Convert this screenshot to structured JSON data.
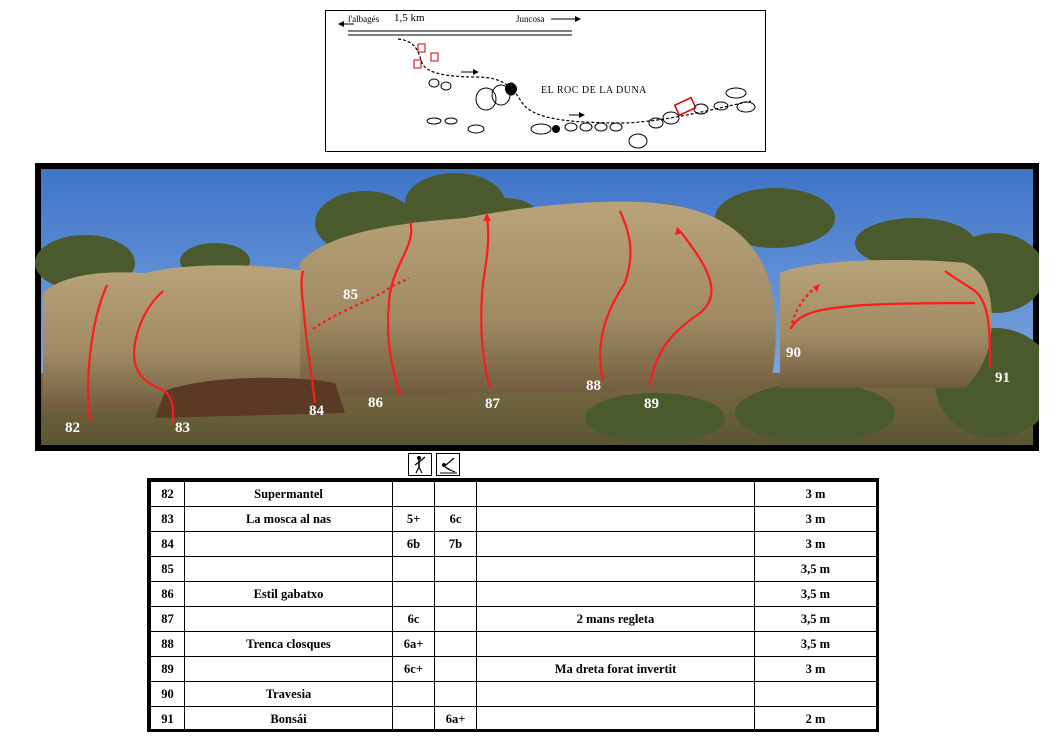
{
  "map": {
    "left_label": "l'albagés",
    "distance": "1,5 km",
    "right_label": "Juncosa",
    "title": "EL ROC DE LA DUNA",
    "parking_icon": "parking-icon"
  },
  "photo": {
    "route_labels": [
      {
        "id": "82",
        "text": "82"
      },
      {
        "id": "83",
        "text": "83"
      },
      {
        "id": "84",
        "text": "84"
      },
      {
        "id": "85",
        "text": "85"
      },
      {
        "id": "86",
        "text": "86"
      },
      {
        "id": "87",
        "text": "87"
      },
      {
        "id": "88",
        "text": "88"
      },
      {
        "id": "89",
        "text": "89"
      },
      {
        "id": "90",
        "text": "90"
      },
      {
        "id": "91",
        "text": "91"
      }
    ],
    "line_color": "#ff1a1a"
  },
  "legend": {
    "icon_1": "climber-standing-icon",
    "icon_2": "climber-sitting-start-icon"
  },
  "table": {
    "rows": [
      {
        "num": "82",
        "name": "Supermantel",
        "grade_stand": "",
        "grade_sit": "",
        "note": "",
        "height": "3 m"
      },
      {
        "num": "83",
        "name": "La mosca al nas",
        "grade_stand": "5+",
        "grade_sit": "6c",
        "note": "",
        "height": "3 m"
      },
      {
        "num": "84",
        "name": "",
        "grade_stand": "6b",
        "grade_sit": "7b",
        "note": "",
        "height": "3 m"
      },
      {
        "num": "85",
        "name": "",
        "grade_stand": "",
        "grade_sit": "",
        "note": "",
        "height": "3,5 m"
      },
      {
        "num": "86",
        "name": "Estil gabatxo",
        "grade_stand": "",
        "grade_sit": "",
        "note": "",
        "height": "3,5 m"
      },
      {
        "num": "87",
        "name": "",
        "grade_stand": "6c",
        "grade_sit": "",
        "note": "2 mans regleta",
        "height": "3,5 m"
      },
      {
        "num": "88",
        "name": "Trenca closques",
        "grade_stand": "6a+",
        "grade_sit": "",
        "note": "",
        "height": "3,5 m"
      },
      {
        "num": "89",
        "name": "",
        "grade_stand": "6c+",
        "grade_sit": "",
        "note": "Ma dreta forat invertit",
        "height": "3 m"
      },
      {
        "num": "90",
        "name": "Travesia",
        "grade_stand": "",
        "grade_sit": "",
        "note": "",
        "height": ""
      },
      {
        "num": "91",
        "name": "Bonsái",
        "grade_stand": "",
        "grade_sit": "6a+",
        "note": "",
        "height": "2 m"
      }
    ]
  }
}
